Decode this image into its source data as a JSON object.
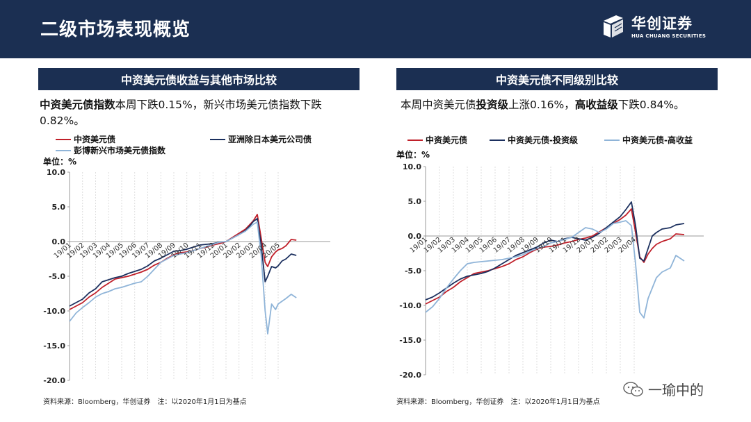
{
  "header": {
    "title": "二级市场表现概览"
  },
  "logo": {
    "name_cn": "华创证券",
    "name_en": "HUA CHUANG SECURITIES"
  },
  "left": {
    "title": "中资美元债收益与其他市场比较",
    "desc_bold": "中资美元债指数",
    "desc_rest": "本周下跌0.15%，新兴市场美元债指数下跌0.82%。",
    "unit": "单位：%",
    "source": "资料来源：Bloomberg，华创证券　注：以2020年1月1日为基点"
  },
  "right": {
    "title": "中资美元债不同级别比较",
    "desc_pre": "本周中资美元债",
    "desc_b1": "投资级",
    "desc_mid": "上涨0.16%，",
    "desc_b2": "高收益级",
    "desc_post": "下跌0.84%。",
    "unit": "单位：%",
    "source": "资料来源：Bloomberg，华创证券　注：以2020年1月1日为基点"
  },
  "watermark": {
    "text": "一瑜中的",
    "icon": "wechat-icon"
  },
  "chart_data": [
    {
      "type": "line",
      "ylim": [
        -20,
        10
      ],
      "yticks": [
        10,
        5,
        0,
        -5,
        -10,
        -15,
        -20
      ],
      "ytick_labels": [
        "10.0",
        "5.0",
        "0.0",
        "-5.0",
        "-10.0",
        "-15.0",
        "-20.0"
      ],
      "xlim": [
        0,
        20
      ],
      "xticks": [
        0,
        1,
        2,
        3,
        4,
        5,
        6,
        7,
        8,
        9,
        10,
        11,
        12,
        13,
        14,
        15,
        16
      ],
      "xtick_labels": [
        "19/01",
        "19/02",
        "19/03",
        "19/04",
        "19/05",
        "19/06",
        "19/07",
        "19/08",
        "19/09",
        "19/10",
        "19/11",
        "19/12",
        "20/01",
        "20/02",
        "20/03",
        "20/04",
        "20/05"
      ],
      "grid": true,
      "legend_position": "top",
      "series": [
        {
          "name": "中资美元债",
          "color": "#c0202a",
          "x": [
            0,
            0.5,
            1,
            1.5,
            2,
            2.5,
            3,
            3.5,
            4,
            4.5,
            5,
            5.5,
            6,
            6.5,
            7,
            7.5,
            8,
            8.5,
            9,
            9.5,
            10,
            10.5,
            11,
            11.5,
            12,
            12.5,
            13,
            13.5,
            13.8,
            14.1,
            14.4,
            14.7,
            15,
            15.2,
            15.5,
            15.8,
            16,
            16.3,
            16.6,
            17,
            17.4
          ],
          "y": [
            -9.8,
            -9.3,
            -8.8,
            -8.0,
            -7.4,
            -6.6,
            -6.0,
            -5.4,
            -5.2,
            -5.0,
            -4.7,
            -4.4,
            -4.0,
            -3.4,
            -3.0,
            -2.4,
            -1.9,
            -1.6,
            -1.5,
            -1.3,
            -1.0,
            -0.8,
            -0.5,
            -0.3,
            0.0,
            0.6,
            1.2,
            1.8,
            2.4,
            3.0,
            3.9,
            0.5,
            -3.0,
            -3.6,
            -2.2,
            -1.5,
            -1.2,
            -1.0,
            -0.6,
            0.3,
            0.2
          ]
        },
        {
          "name": "亚洲除日本美元公司债",
          "color": "#1b2f5e",
          "x": [
            0,
            0.5,
            1,
            1.5,
            2,
            2.5,
            3,
            3.5,
            4,
            4.5,
            5,
            5.5,
            6,
            6.5,
            7,
            7.5,
            8,
            8.5,
            9,
            9.5,
            10,
            10.5,
            11,
            11.5,
            12,
            12.5,
            13,
            13.5,
            13.8,
            14.1,
            14.4,
            14.7,
            15,
            15.2,
            15.5,
            15.8,
            16,
            16.3,
            16.6,
            17,
            17.4
          ],
          "y": [
            -9.3,
            -8.8,
            -8.3,
            -7.4,
            -6.8,
            -5.8,
            -5.5,
            -5.2,
            -5.0,
            -4.6,
            -4.3,
            -4.0,
            -3.5,
            -2.8,
            -2.4,
            -1.9,
            -1.4,
            -1.3,
            -1.1,
            -0.8,
            -0.5,
            -0.4,
            -0.3,
            -0.1,
            0.0,
            0.5,
            1.0,
            1.6,
            2.2,
            2.9,
            3.3,
            -0.5,
            -5.8,
            -5.0,
            -3.6,
            -3.8,
            -3.5,
            -2.8,
            -2.5,
            -1.8,
            -2.0
          ]
        },
        {
          "name": "彭博新兴市场美元债指数",
          "color": "#8fb4d8",
          "x": [
            0,
            0.5,
            1,
            1.5,
            2,
            2.5,
            3,
            3.5,
            4,
            4.5,
            5,
            5.5,
            6,
            6.5,
            7,
            7.5,
            8,
            8.5,
            9,
            9.5,
            10,
            10.5,
            11,
            11.5,
            12,
            12.5,
            13,
            13.5,
            13.8,
            14.1,
            14.4,
            14.7,
            15,
            15.2,
            15.5,
            15.8,
            16,
            16.3,
            16.6,
            17,
            17.4
          ],
          "y": [
            -11.5,
            -10.3,
            -9.5,
            -8.8,
            -8.0,
            -7.5,
            -7.2,
            -6.8,
            -6.6,
            -6.3,
            -6.0,
            -5.8,
            -5.0,
            -4.0,
            -3.0,
            -2.5,
            -2.0,
            -1.8,
            -1.6,
            -1.3,
            -1.0,
            -0.7,
            -0.4,
            -0.1,
            0.0,
            0.5,
            1.0,
            1.5,
            2.0,
            2.5,
            2.8,
            -2.0,
            -10.0,
            -13.3,
            -9.0,
            -9.8,
            -9.0,
            -8.6,
            -8.2,
            -7.6,
            -8.1
          ]
        }
      ]
    },
    {
      "type": "line",
      "ylim": [
        -20,
        10
      ],
      "yticks": [
        10,
        5,
        0,
        -5,
        -10,
        -15,
        -20
      ],
      "ytick_labels": [
        "10.0",
        "5.0",
        "0.0",
        "-5.0",
        "-10.0",
        "-15.0",
        "-20.0"
      ],
      "xlim": [
        0,
        20
      ],
      "xticks": [
        0,
        1,
        2,
        3,
        4,
        5,
        6,
        7,
        8,
        9,
        10,
        11,
        12,
        13,
        14,
        15
      ],
      "xtick_labels": [
        "19/01",
        "19/02",
        "19/03",
        "19/04",
        "19/05",
        "19/06",
        "19/07",
        "19/08",
        "19/09",
        "19/10",
        "19/11",
        "19/12",
        "20/01",
        "20/02",
        "20/03",
        "20/04"
      ],
      "grid": true,
      "legend_position": "top",
      "series": [
        {
          "name": "中资美元债",
          "color": "#c0202a",
          "x": [
            0,
            0.5,
            1,
            1.5,
            2,
            2.5,
            3,
            3.5,
            4,
            4.5,
            5,
            5.5,
            6,
            6.5,
            7,
            7.5,
            8,
            8.5,
            9,
            9.5,
            10,
            10.5,
            11,
            11.5,
            12,
            12.5,
            13,
            13.5,
            14,
            14.4,
            14.8,
            15.1,
            15.4,
            15.7,
            16,
            16.3,
            16.6,
            17,
            17.6,
            18,
            18.6
          ],
          "y": [
            -9.8,
            -9.3,
            -8.8,
            -8.0,
            -7.4,
            -6.6,
            -6.0,
            -5.4,
            -5.2,
            -5.0,
            -4.7,
            -4.4,
            -4.0,
            -3.4,
            -3.0,
            -2.4,
            -1.9,
            -1.6,
            -1.5,
            -1.3,
            -1.0,
            -0.8,
            -0.5,
            -0.3,
            0.0,
            0.6,
            1.2,
            1.8,
            2.4,
            3.0,
            3.9,
            0.5,
            -3.0,
            -3.8,
            -2.6,
            -1.8,
            -1.2,
            -0.8,
            -0.4,
            0.3,
            0.2
          ]
        },
        {
          "name": "中资美元债-投资级",
          "color": "#1b2f5e",
          "x": [
            0,
            0.5,
            1,
            1.5,
            2,
            2.5,
            3,
            3.5,
            4,
            4.5,
            5,
            5.5,
            6,
            6.5,
            7,
            7.5,
            8,
            8.5,
            9,
            9.5,
            10,
            10.5,
            11,
            11.5,
            12,
            12.5,
            13,
            13.5,
            14,
            14.4,
            14.8,
            15.1,
            15.4,
            15.7,
            16,
            16.3,
            16.6,
            17,
            17.6,
            18,
            18.6
          ],
          "y": [
            -9.2,
            -8.8,
            -8.2,
            -7.5,
            -6.8,
            -6.2,
            -5.8,
            -5.6,
            -5.4,
            -5.1,
            -4.6,
            -4.0,
            -3.4,
            -2.8,
            -2.4,
            -2.0,
            -1.6,
            -1.0,
            -0.6,
            -0.8,
            -0.4,
            -0.2,
            -0.4,
            -0.6,
            -0.2,
            0.4,
            1.2,
            2.0,
            2.8,
            3.8,
            4.9,
            1.5,
            -3.2,
            -3.6,
            -1.8,
            0.0,
            0.5,
            1.0,
            1.2,
            1.6,
            1.8
          ]
        },
        {
          "name": "中资美元债-高收益",
          "color": "#8fb4d8",
          "x": [
            0,
            0.5,
            1,
            1.5,
            2,
            2.5,
            3,
            3.5,
            4,
            4.5,
            5,
            5.5,
            6,
            6.5,
            7,
            7.5,
            8,
            8.5,
            9,
            9.5,
            10,
            10.5,
            11,
            11.5,
            12,
            12.5,
            13,
            13.5,
            14,
            14.4,
            14.8,
            15.1,
            15.4,
            15.7,
            16,
            16.3,
            16.6,
            17,
            17.6,
            18,
            18.6
          ],
          "y": [
            -11.0,
            -10.2,
            -9.0,
            -7.5,
            -6.2,
            -5.0,
            -4.0,
            -3.8,
            -3.7,
            -3.6,
            -3.5,
            -3.4,
            -3.2,
            -3.0,
            -2.7,
            -2.2,
            -1.8,
            -1.5,
            -1.0,
            -0.8,
            -0.5,
            -0.2,
            0.5,
            1.2,
            1.0,
            0.5,
            1.0,
            1.8,
            2.0,
            2.2,
            1.5,
            -4.0,
            -11.0,
            -11.8,
            -9.0,
            -7.5,
            -6.0,
            -5.2,
            -4.6,
            -2.8,
            -3.6
          ]
        }
      ]
    }
  ]
}
